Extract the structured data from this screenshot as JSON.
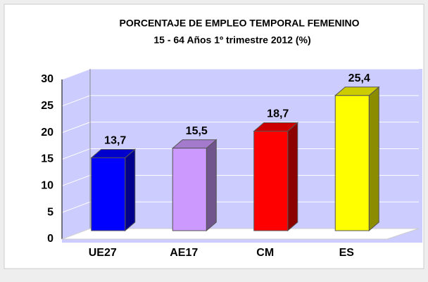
{
  "chart_data": {
    "type": "bar3d",
    "title": "PORCENTAJE DE EMPLEO TEMPORAL FEMENINO",
    "subtitle": "15 - 64 Años  1º trimestre 2012 (%)",
    "categories": [
      "UE27",
      "AE17",
      "CM",
      "ES"
    ],
    "values": [
      13.7,
      15.5,
      18.7,
      25.4
    ],
    "value_labels": [
      "13,7",
      "15,5",
      "18,7",
      "25,4"
    ],
    "colors": [
      "#0000ff",
      "#cc99ff",
      "#ff0000",
      "#ffff00"
    ],
    "ylim": [
      0,
      30
    ],
    "yticks": [
      0,
      5,
      10,
      15,
      20,
      25,
      30
    ],
    "grid": true
  }
}
